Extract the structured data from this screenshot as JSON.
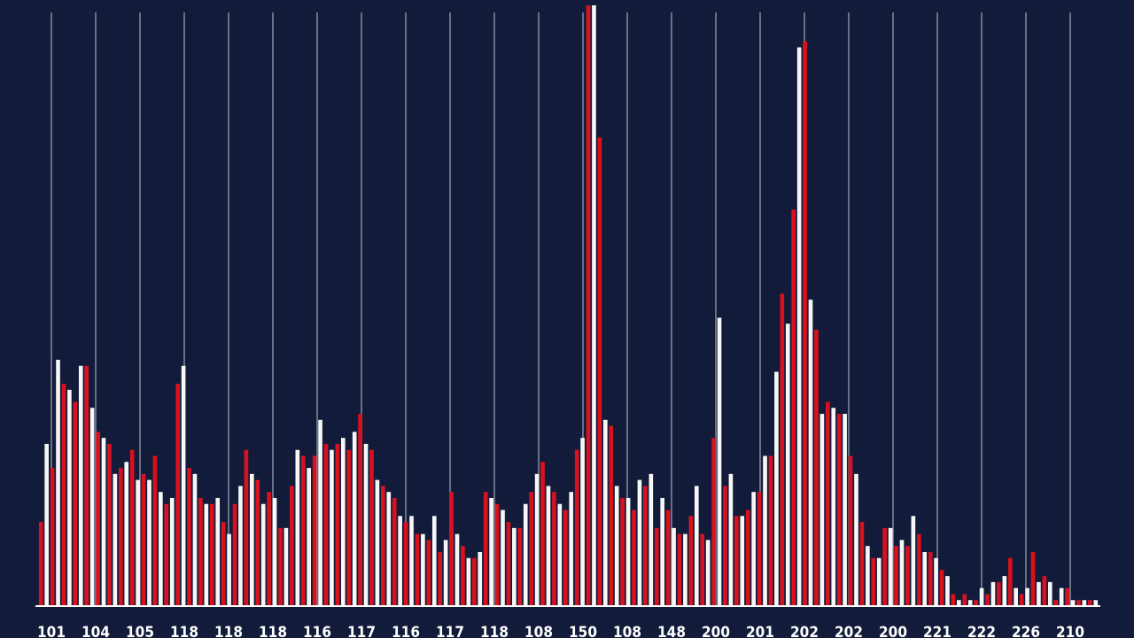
{
  "colors": {
    "background": "#121c3a",
    "red": "#d9111f",
    "white": "#f7f7f7",
    "grid": "#b9c0cf",
    "tick_text": "#ffffff"
  },
  "chart_data": {
    "type": "bar",
    "title": "",
    "xlabel": "",
    "ylabel": "",
    "grid": "vertical lines only",
    "legend": "none",
    "y_axis_labels": "none shown",
    "bar_colors": "alternating red and white bars",
    "ylim": [
      0,
      100
    ],
    "x_tick_labels": [
      "101",
      "104",
      "105",
      "118",
      "118",
      "118",
      "116",
      "117",
      "116",
      "117",
      "118",
      "108",
      "150",
      "108",
      "148",
      "200",
      "201",
      "202",
      "202",
      "200",
      "221",
      "222",
      "226",
      "210"
    ],
    "values": [
      14,
      27,
      23,
      41,
      37,
      36,
      34,
      40,
      40,
      33,
      29,
      28,
      27,
      22,
      23,
      24,
      26,
      21,
      22,
      21,
      25,
      19,
      17,
      18,
      37,
      40,
      23,
      22,
      18,
      17,
      17,
      18,
      14,
      12,
      17,
      20,
      26,
      22,
      21,
      17,
      19,
      18,
      13,
      13,
      20,
      26,
      25,
      23,
      25,
      31,
      27,
      26,
      27,
      28,
      26,
      29,
      32,
      27,
      26,
      21,
      20,
      19,
      18,
      15,
      14,
      15,
      12,
      12,
      11,
      15,
      9,
      11,
      19,
      12,
      10,
      8,
      8,
      9,
      19,
      18,
      17,
      16,
      14,
      13,
      13,
      17,
      19,
      22,
      24,
      20,
      19,
      17,
      16,
      19,
      26,
      28,
      100,
      100,
      78,
      31,
      30,
      20,
      18,
      18,
      16,
      21,
      20,
      22,
      13,
      18,
      16,
      13,
      12,
      12,
      15,
      20,
      12,
      11,
      28,
      48,
      20,
      22,
      15,
      15,
      16,
      19,
      19,
      25,
      25,
      39,
      52,
      47,
      66,
      93,
      94,
      51,
      46,
      32,
      34,
      33,
      32,
      32,
      25,
      22,
      14,
      10,
      8,
      8,
      13,
      13,
      10,
      11,
      10,
      15,
      12,
      9,
      9,
      8,
      6,
      5,
      2,
      1,
      2,
      1,
      1,
      3,
      2,
      4,
      4,
      5,
      8,
      3,
      2,
      3,
      9,
      4,
      5,
      4,
      1,
      3,
      3,
      1,
      1,
      1,
      1,
      1
    ]
  }
}
